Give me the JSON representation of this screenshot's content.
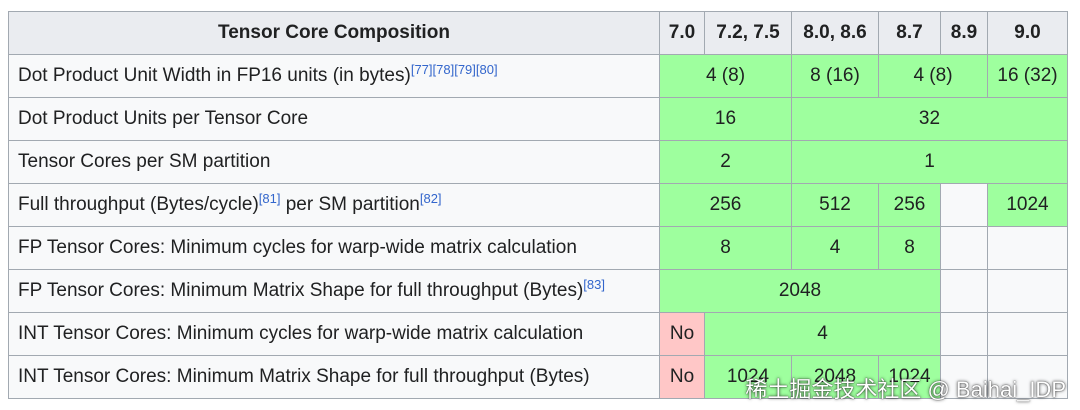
{
  "table": {
    "header": {
      "title": "Tensor Core Composition",
      "cols": [
        "7.0",
        "7.2, 7.5",
        "8.0, 8.6",
        "8.7",
        "8.9",
        "9.0"
      ]
    },
    "rows": [
      {
        "label": "Dot Product Unit Width in FP16 units (in bytes)",
        "refs": [
          "[77]",
          "[78]",
          "[79]",
          "[80]"
        ],
        "cells": [
          "4 (8)",
          "8 (16)",
          "4 (8)",
          "16 (32)"
        ]
      },
      {
        "label": "Dot Product Units per Tensor Core",
        "cells": [
          "16",
          "32"
        ]
      },
      {
        "label": "Tensor Cores per SM partition",
        "cells": [
          "2",
          "1"
        ]
      },
      {
        "label_a": "Full throughput (Bytes/cycle)",
        "ref_a": "[81]",
        "label_b": " per SM partition",
        "ref_b": "[82]",
        "cells": [
          "256",
          "512",
          "256",
          "",
          "1024"
        ]
      },
      {
        "label": "FP Tensor Cores: Minimum cycles for warp-wide matrix calculation",
        "cells": [
          "8",
          "4",
          "8"
        ]
      },
      {
        "label": "FP Tensor Cores: Minimum Matrix Shape for full throughput (Bytes)",
        "refs": [
          "[83]"
        ],
        "cells": [
          "2048"
        ]
      },
      {
        "label": "INT Tensor Cores: Minimum cycles for warp-wide matrix calculation",
        "cells": [
          "No",
          "4"
        ]
      },
      {
        "label": "INT Tensor Cores: Minimum Matrix Shape for full throughput (Bytes)",
        "cells": [
          "No",
          "1024",
          "2048",
          "1024"
        ]
      }
    ]
  },
  "colors": {
    "supported": "#9eff9e",
    "unsupported": "#ffc7c7",
    "header_bg": "#eaecf0",
    "row_header_bg": "#f8f9fa",
    "link": "#3366cc",
    "border": "#a2a9b1"
  },
  "watermark": "稀土掘金技术社区 @ Baihai_IDP"
}
